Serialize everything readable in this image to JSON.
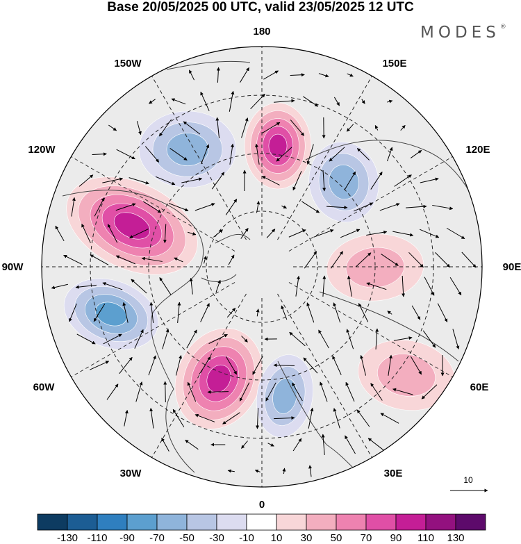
{
  "header": {
    "title": "Base 20/05/2025 00 UTC, valid 23/05/2025 12 UTC",
    "logo": "MODES",
    "logo_mark": "®"
  },
  "map": {
    "projection": "north-polar-stereographic",
    "longitude_labels": {
      "north": "180",
      "nne": "150E",
      "ene": "120E",
      "east": "90E",
      "ese": "60E",
      "sse": "30E",
      "south": "0",
      "ssw": "30W",
      "wsw": "60W",
      "west": "90W",
      "wnw": "120W",
      "nnw": "150W"
    },
    "anomalies": [
      {
        "id": "pos-alaska",
        "sign": "positive",
        "peak": 110
      },
      {
        "id": "pos-canada",
        "sign": "positive",
        "peak": 110
      },
      {
        "id": "pos-atlantic",
        "sign": "positive",
        "peak": 110
      },
      {
        "id": "pos-siberia",
        "sign": "positive",
        "peak": 50
      },
      {
        "id": "pos-central-asia",
        "sign": "positive",
        "peak": 50
      },
      {
        "id": "neg-north-pacific",
        "sign": "negative",
        "peak": -70
      },
      {
        "id": "neg-east-siberia",
        "sign": "negative",
        "peak": -70
      },
      {
        "id": "neg-north-america",
        "sign": "negative",
        "peak": -90
      },
      {
        "id": "neg-europe",
        "sign": "negative",
        "peak": -70
      }
    ],
    "wind_reference": {
      "label": "10"
    }
  },
  "colorbar": {
    "colors": [
      "#0d3b61",
      "#1c5d94",
      "#2f7fbf",
      "#5c9fcf",
      "#8fb4db",
      "#b8c6e4",
      "#dcdcf0",
      "#ffffff",
      "#f8d6d8",
      "#f3aebf",
      "#ee82b0",
      "#e04fa6",
      "#c41e96",
      "#93117f",
      "#5d0a6b"
    ],
    "labels": [
      "-130",
      "-110",
      "-90",
      "-70",
      "-50",
      "-30",
      "-10",
      "10",
      "30",
      "50",
      "70",
      "90",
      "110",
      "130"
    ]
  }
}
